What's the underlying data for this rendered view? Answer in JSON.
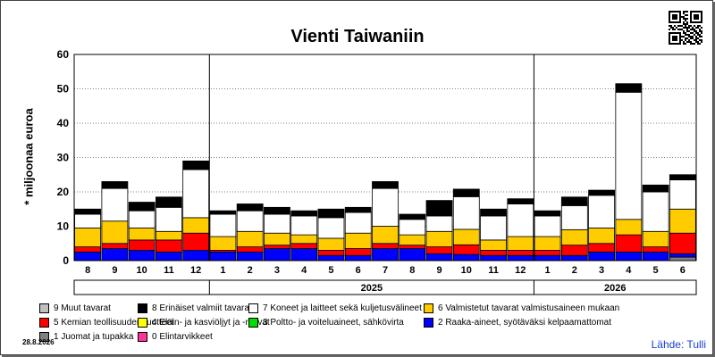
{
  "chart_data": {
    "type": "bar",
    "title": "Vienti Taiwaniin",
    "ylabel": "* miljoonaa euroa",
    "ylim": [
      0,
      60
    ],
    "yticks": [
      0,
      10,
      20,
      30,
      40,
      50,
      60
    ],
    "grid": true,
    "categories": [
      "8",
      "9",
      "10",
      "11",
      "12",
      "1",
      "2",
      "3",
      "4",
      "5",
      "6",
      "7",
      "8",
      "9",
      "10",
      "11",
      "12",
      "1",
      "2",
      "3",
      "4",
      "5",
      "6"
    ],
    "years": [
      {
        "label": "2025",
        "start_index": 5,
        "end_index": 16
      },
      {
        "label": "2026",
        "start_index": 17,
        "end_index": 22
      }
    ],
    "series": [
      {
        "name": "0 Elintarvikkeet",
        "color": "#ff3399",
        "values": [
          0,
          0,
          0,
          0,
          0,
          0,
          0,
          0,
          0,
          0,
          0,
          0,
          0,
          0,
          0,
          0,
          0,
          0,
          0,
          0,
          0,
          0,
          0
        ]
      },
      {
        "name": "1 Juomat ja tupakka",
        "color": "#808080",
        "values": [
          0,
          0,
          0,
          0,
          0,
          0,
          0,
          0,
          0,
          0,
          0,
          0,
          0,
          0,
          0,
          0,
          0,
          0,
          0,
          0,
          0,
          0,
          1
        ]
      },
      {
        "name": "2 Raaka-aineet, syötäväksi kelpaamattomat",
        "color": "#0000ff",
        "values": [
          2.5,
          3.5,
          3,
          2.5,
          3,
          2.5,
          2.5,
          3.5,
          3.5,
          1.5,
          1.5,
          3.5,
          3.5,
          2,
          1.8,
          1.5,
          1.5,
          1.5,
          1.5,
          2.5,
          2.5,
          2.5,
          1
        ]
      },
      {
        "name": "3 Poltto- ja voiteluaineet, sähkövirta",
        "color": "#00dd00",
        "values": [
          0,
          0,
          0,
          0,
          0,
          0,
          0,
          0,
          0,
          0,
          0,
          0,
          0,
          0,
          0,
          0,
          0,
          0,
          0,
          0,
          0,
          0,
          0
        ]
      },
      {
        "name": "4 Eläin- ja kasviöljyt ja -rasvat",
        "color": "#ffff00",
        "values": [
          0,
          0,
          0,
          0,
          0,
          0,
          0,
          0,
          0,
          0,
          0,
          0,
          0,
          0,
          0,
          0,
          0,
          0,
          0,
          0,
          0,
          0,
          0
        ]
      },
      {
        "name": "5 Kemian teollisuuden tuotteet",
        "color": "#ff0000",
        "values": [
          1.5,
          1.5,
          3,
          3.5,
          5,
          0.5,
          1.5,
          1,
          1.5,
          1.5,
          2,
          1.5,
          1,
          2,
          2.8,
          1.5,
          1.5,
          1.5,
          3,
          2.5,
          5,
          1.5,
          6
        ]
      },
      {
        "name": "6 Valmistetut tavarat valmistusaineen mukaan",
        "color": "#ffcc00",
        "values": [
          5.5,
          6.5,
          3.5,
          2.5,
          4.5,
          4,
          4.5,
          3.5,
          2.5,
          3.5,
          4.5,
          5,
          3,
          4.5,
          4.5,
          3,
          4,
          4,
          4.5,
          4.5,
          4.5,
          4.5,
          7
        ]
      },
      {
        "name": "7 Koneet ja laitteet sekä kuljetusvälineet",
        "color": "#ffffff",
        "values": [
          4,
          9.5,
          5,
          7,
          14,
          6.5,
          6,
          5.5,
          5.5,
          6,
          6,
          11,
          4.5,
          4.5,
          9.5,
          7,
          9.5,
          6,
          7,
          9.5,
          37,
          11.5,
          8.5
        ]
      },
      {
        "name": "8 Erinäiset valmiit tavarat",
        "color": "#000000",
        "values": [
          1.5,
          2,
          2.5,
          3,
          2.5,
          1,
          2,
          2,
          1.5,
          2.5,
          1.5,
          2,
          1.5,
          4.5,
          2.2,
          2,
          1.5,
          1.5,
          2.5,
          1.5,
          2.5,
          2,
          1.5
        ]
      },
      {
        "name": "9 Muut tavarat",
        "color": "#c0c0c0",
        "values": [
          0,
          0,
          0,
          0,
          0,
          0,
          0,
          0,
          0,
          0,
          0,
          0,
          0,
          0,
          0,
          0,
          0,
          0,
          0,
          0,
          0,
          0,
          0
        ]
      }
    ]
  },
  "legend": {
    "order": [
      9,
      8,
      7,
      6,
      5,
      4,
      3,
      2,
      1,
      0
    ]
  },
  "footer": {
    "date": "28.8.2026",
    "source": "Lähde: Tulli"
  }
}
